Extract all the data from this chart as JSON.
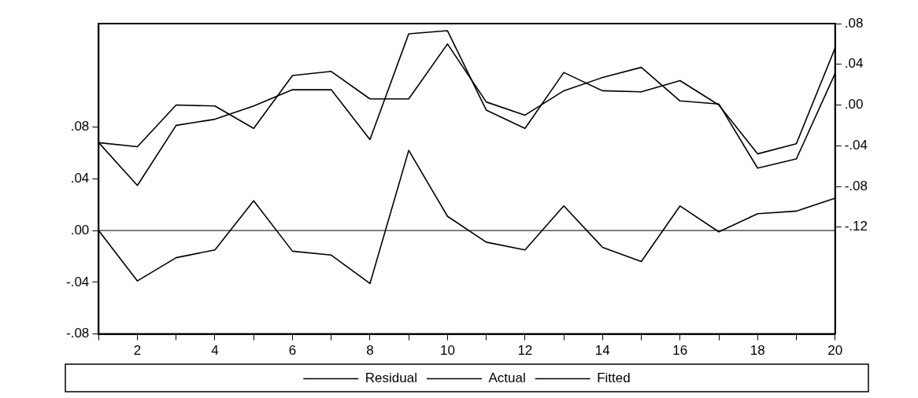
{
  "chart_data": {
    "type": "line",
    "x": [
      1,
      2,
      3,
      4,
      5,
      6,
      7,
      8,
      9,
      10,
      11,
      12,
      13,
      14,
      15,
      16,
      17,
      18,
      19,
      20
    ],
    "xlim": [
      1,
      20
    ],
    "xticks": [
      {
        "value": 1,
        "label": null
      },
      2,
      {
        "value": 3,
        "label": null
      },
      4,
      {
        "value": 5,
        "label": null
      },
      6,
      {
        "value": 7,
        "label": null
      },
      8,
      {
        "value": 9,
        "label": null
      },
      10,
      {
        "value": 11,
        "label": null
      },
      12,
      {
        "value": 13,
        "label": null
      },
      14,
      {
        "value": 15,
        "label": null
      },
      16,
      {
        "value": 17,
        "label": null
      },
      18,
      {
        "value": 19,
        "label": null
      },
      20
    ],
    "ylim": [
      -0.08,
      0.16
    ],
    "yticks": [
      {
        "value": -0.08,
        "label": "-.08"
      },
      {
        "value": -0.04,
        "label": "-.04"
      },
      {
        "value": 0,
        "label": ".00"
      },
      {
        "value": 0.04,
        "label": ".04"
      },
      {
        "value": 0.08,
        "label": ".08"
      }
    ],
    "y2lim": [
      -0.225,
      0.08
    ],
    "y2ticks": [
      {
        "value": -0.12,
        "label": "-.12"
      },
      {
        "value": -0.08,
        "label": "-.08"
      },
      {
        "value": -0.04,
        "label": "-.04"
      },
      {
        "value": 0,
        "label": ".00"
      },
      {
        "value": 0.04,
        "label": ".04"
      },
      {
        "value": 0.08,
        "label": ".08"
      }
    ],
    "series": [
      {
        "name": "Residual",
        "color": "#000000",
        "values": [
          0.0,
          -0.039,
          -0.021,
          -0.015,
          0.023,
          -0.016,
          -0.019,
          -0.041,
          0.062,
          0.011,
          -0.009,
          -0.015,
          0.019,
          -0.013,
          -0.024,
          0.019,
          -0.001,
          0.013,
          0.015,
          0.025
        ]
      },
      {
        "name": "Actual",
        "color": "#000000",
        "axis": "y2",
        "values": [
          -0.037,
          -0.079,
          -0.02,
          -0.014,
          -0.001,
          0.015,
          0.015,
          -0.034,
          0.07,
          0.073,
          -0.005,
          -0.023,
          0.032,
          0.014,
          0.013,
          0.024,
          0.0,
          -0.048,
          -0.038,
          0.056
        ]
      },
      {
        "name": "Fitted",
        "color": "#000000",
        "axis": "y2",
        "values": [
          -0.037,
          -0.041,
          0.0,
          -0.001,
          -0.023,
          0.029,
          0.033,
          0.006,
          0.006,
          0.06,
          0.003,
          -0.01,
          0.014,
          0.027,
          0.037,
          0.004,
          0.001,
          -0.062,
          -0.053,
          0.031
        ]
      }
    ],
    "ref_lines": [
      {
        "axis": "y",
        "value": 0,
        "color": "#000000"
      }
    ],
    "grid": false,
    "legend": "bottom",
    "marker": "none",
    "line_style": "solid"
  }
}
